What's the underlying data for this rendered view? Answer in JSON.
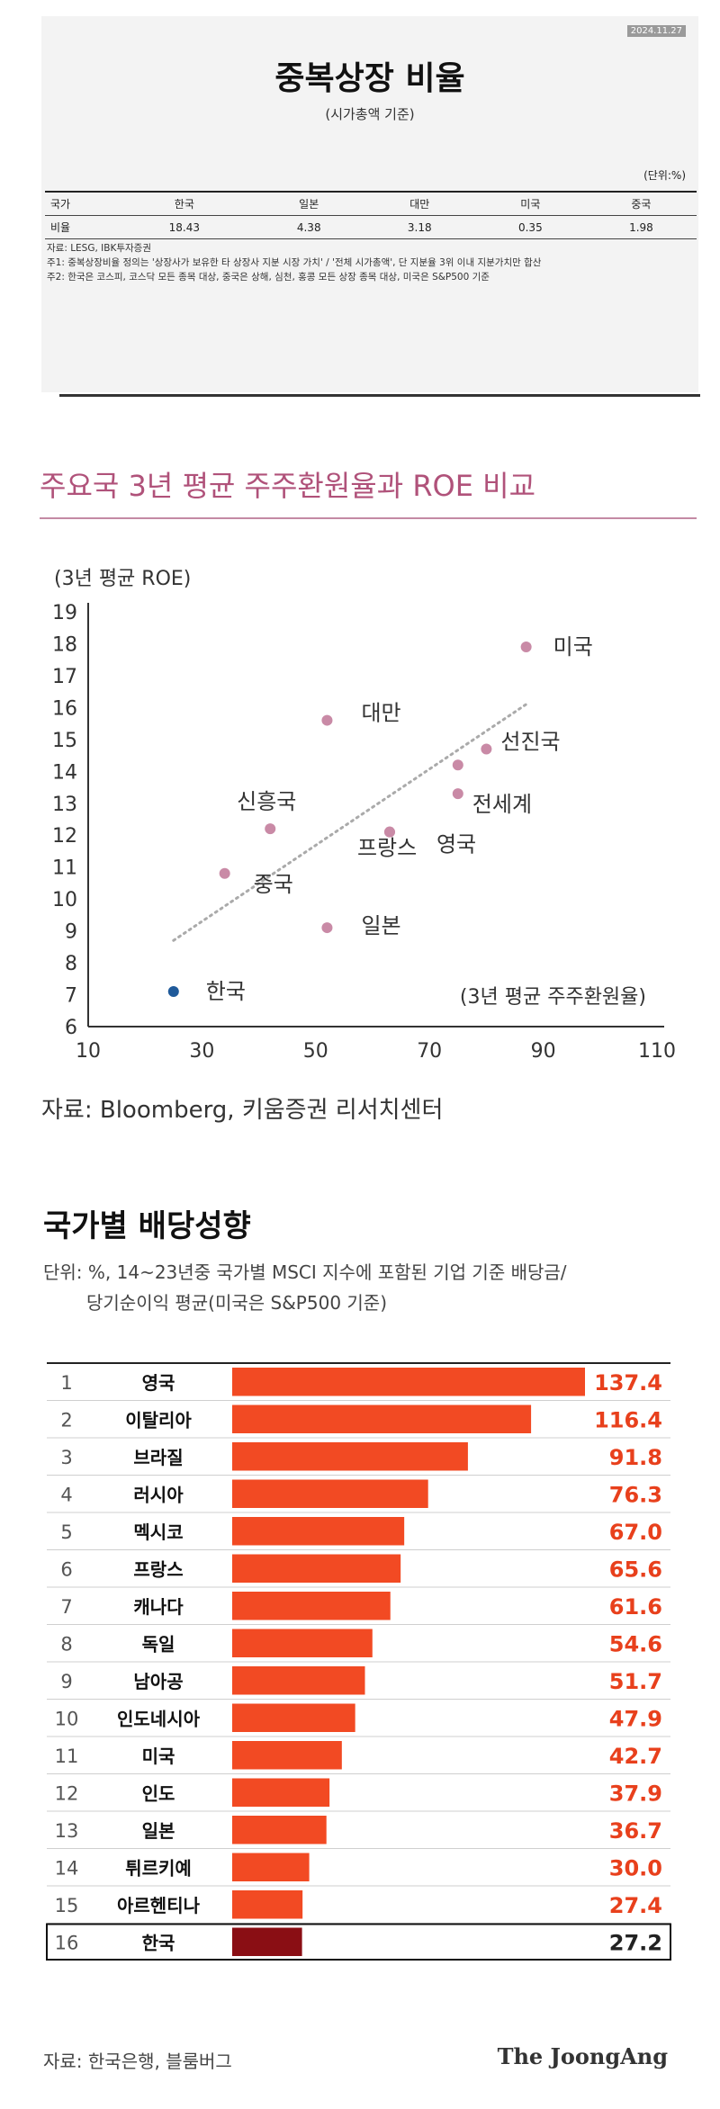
{
  "panel1": {
    "title": "중복상장 비율",
    "subtitle": "(시가총액 기준)",
    "stamp": "2024.11.27",
    "unit": "(단위:%)",
    "headers": [
      "국가",
      "한국",
      "일본",
      "대만",
      "미국",
      "중국"
    ],
    "row_label": "비율",
    "values": [
      "18.43",
      "4.38",
      "3.18",
      "0.35",
      "1.98"
    ],
    "notes": [
      "자료: LESG, IBK투자증권",
      "주1: 중복상장비율 정의는 '상장사가 보유한 타 상장사 지분 시장 가치' / '전체 시가총액', 단 지분율 3위 이내 지분가치만 합산",
      "주2: 한국은 코스피, 코스닥 모든 종목 대상, 중국은 상해, 심천, 홍콩 모든 상장 종목 대상, 미국은 S&P500 기준"
    ]
  },
  "panel2": {
    "title": "주요국 3년 평균 주주환원율과 ROE 비교",
    "source": "자료: Bloomberg,  키움증권  리서치센터",
    "chart_data": {
      "type": "scatter",
      "ylabel": "(3년 평균 ROE)",
      "xlabel": "(3년 평균 주주환원율)",
      "xlim": [
        10,
        110
      ],
      "ylim": [
        6,
        19
      ],
      "x_ticks": [
        "10",
        "30",
        "50",
        "70",
        "90",
        "110"
      ],
      "y_ticks": [
        "6",
        "7",
        "8",
        "9",
        "10",
        "11",
        "12",
        "13",
        "14",
        "15",
        "16",
        "17",
        "18",
        "19"
      ],
      "points": [
        {
          "label": "미국",
          "x": 87,
          "y": 17.9,
          "highlight": false
        },
        {
          "label": "대만",
          "x": 52,
          "y": 15.6,
          "highlight": false
        },
        {
          "label": "선진국",
          "x": 80,
          "y": 14.7,
          "highlight": false
        },
        {
          "label": "",
          "x": 75,
          "y": 14.2,
          "highlight": false
        },
        {
          "label": "전세계",
          "x": 75,
          "y": 13.3,
          "highlight": false
        },
        {
          "label": "신흥국",
          "x": 42,
          "y": 12.2,
          "highlight": false
        },
        {
          "label": "영국",
          "x": 63,
          "y": 12.1,
          "highlight": false
        },
        {
          "label": "중국",
          "x": 34,
          "y": 10.8,
          "highlight": false
        },
        {
          "label": "프랑스",
          "x": 63,
          "y": 12.1,
          "highlight": false
        },
        {
          "label": "일본",
          "x": 52,
          "y": 9.1,
          "highlight": false
        },
        {
          "label": "한국",
          "x": 25,
          "y": 7.1,
          "highlight": true
        }
      ],
      "trendline": {
        "x": [
          25,
          87
        ],
        "y": [
          8.7,
          16.1
        ]
      },
      "colors": {
        "point": "#c98aa6",
        "highlight": "#1f5a9a",
        "trend": "#aaaaaa"
      }
    }
  },
  "panel3": {
    "title": "국가별 배당성향",
    "unit_lines": [
      "단위: %, 14~23년중 국가별 MSCI 지수에 포함된 기업 기준 배당금/",
      "당기순이익 평균(미국은 S&P500 기준)"
    ],
    "source": "자료: 한국은행, 블룸버그",
    "brand": "The JoongAng",
    "chart_data": {
      "type": "bar",
      "orientation": "horizontal",
      "ranks": [
        "1",
        "2",
        "3",
        "4",
        "5",
        "6",
        "7",
        "8",
        "9",
        "10",
        "11",
        "12",
        "13",
        "14",
        "15",
        "16"
      ],
      "categories": [
        "영국",
        "이탈리아",
        "브라질",
        "러시아",
        "멕시코",
        "프랑스",
        "캐나다",
        "독일",
        "남아공",
        "인도네시아",
        "미국",
        "인도",
        "일본",
        "튀르키예",
        "아르헨티나",
        "한국"
      ],
      "values": [
        137.4,
        116.4,
        91.8,
        76.3,
        67.0,
        65.6,
        61.6,
        54.6,
        51.7,
        47.9,
        42.7,
        37.9,
        36.7,
        30.0,
        27.4,
        27.2
      ],
      "value_labels": [
        "137.4",
        "116.4",
        "91.8",
        "76.3",
        "67.0",
        "65.6",
        "61.6",
        "54.6",
        "51.7",
        "47.9",
        "42.7",
        "37.9",
        "36.7",
        "30.0",
        "27.4",
        "27.2"
      ],
      "highlight_index": 15,
      "colors": {
        "bar": "#f24a23",
        "highlight_bar": "#8a0e14",
        "value": "#e8401c",
        "highlight_value": "#222222"
      }
    }
  }
}
